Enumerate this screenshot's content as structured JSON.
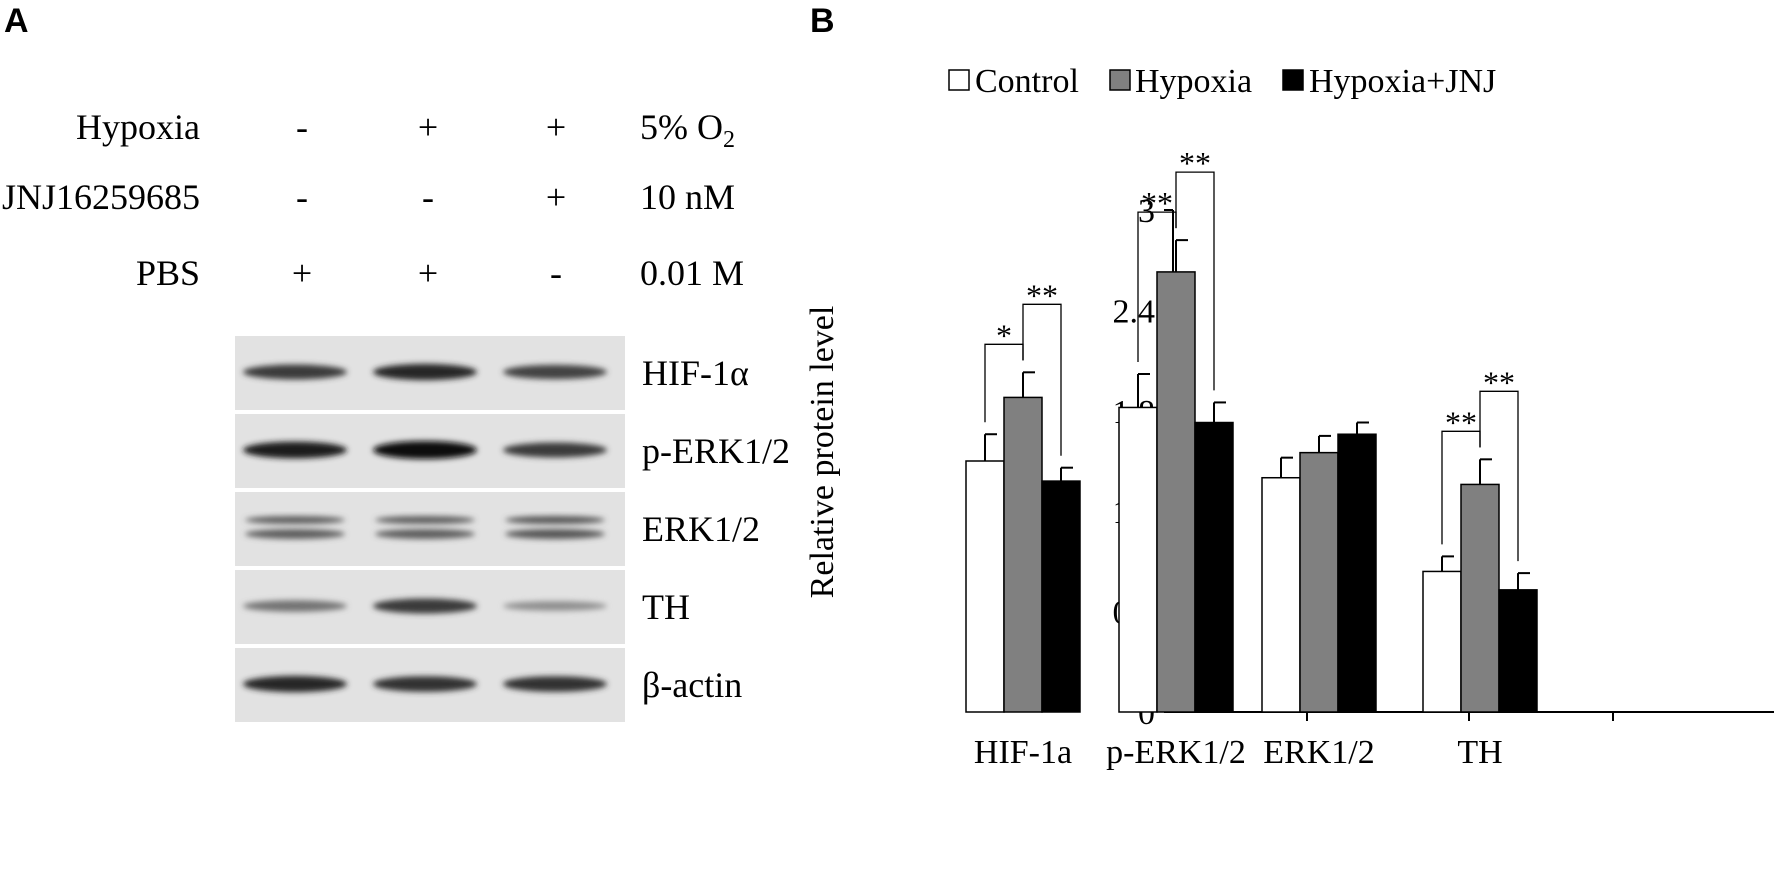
{
  "panelA": {
    "letter": "A",
    "conditions": [
      {
        "label": "Hypoxia",
        "values": [
          "-",
          "+",
          "+"
        ],
        "dose": "5% O",
        "dose_sub": "2"
      },
      {
        "label": "JNJ16259685",
        "values": [
          "-",
          "-",
          "+"
        ],
        "dose": "10 nM",
        "dose_sub": ""
      },
      {
        "label": "PBS",
        "values": [
          "+",
          "+",
          "-"
        ],
        "dose": "0.01 M",
        "dose_sub": ""
      }
    ],
    "blots": [
      {
        "label": "HIF-1α",
        "intensity": [
          0.75,
          0.85,
          0.7
        ]
      },
      {
        "label": "p-ERK1/2",
        "intensity": [
          0.9,
          1.0,
          0.75
        ]
      },
      {
        "label": "ERK1/2",
        "intensity": [
          0.55,
          0.55,
          0.6
        ]
      },
      {
        "label": "TH",
        "intensity": [
          0.45,
          0.75,
          0.3
        ]
      },
      {
        "label": "β-actin",
        "intensity": [
          0.85,
          0.8,
          0.8
        ]
      }
    ]
  },
  "panelB": {
    "letter": "B"
  },
  "chart_data": {
    "type": "bar",
    "categories": [
      "HIF-1a",
      "p-ERK1/2",
      "ERK1/2",
      "TH"
    ],
    "series": [
      {
        "name": "Control",
        "color": "#ffffff",
        "values": [
          1.5,
          1.82,
          1.4,
          0.84
        ],
        "errors": [
          0.16,
          0.2,
          0.12,
          0.09
        ]
      },
      {
        "name": "Hypoxia",
        "color": "#808080",
        "values": [
          1.88,
          2.63,
          1.55,
          1.36
        ],
        "errors": [
          0.15,
          0.19,
          0.1,
          0.15
        ]
      },
      {
        "name": "Hypoxia+JNJ",
        "color": "#000000",
        "values": [
          1.38,
          1.73,
          1.66,
          0.73
        ],
        "errors": [
          0.08,
          0.12,
          0.07,
          0.1
        ]
      }
    ],
    "ylabel": "Relative protein level",
    "xlabel": "",
    "ylim": [
      0,
      3
    ],
    "yticks": [
      "0",
      "0.6",
      "1.2",
      "1.8",
      "2.4",
      "3"
    ],
    "legend_position": "top",
    "significance": [
      {
        "category": 0,
        "from": 0,
        "to": 1,
        "label": "*"
      },
      {
        "category": 0,
        "from": 1,
        "to": 2,
        "label": "**"
      },
      {
        "category": 1,
        "from": 0,
        "to": 1,
        "label": "**"
      },
      {
        "category": 1,
        "from": 1,
        "to": 2,
        "label": "**"
      },
      {
        "category": 3,
        "from": 0,
        "to": 1,
        "label": "**"
      },
      {
        "category": 3,
        "from": 1,
        "to": 2,
        "label": "**"
      }
    ]
  }
}
